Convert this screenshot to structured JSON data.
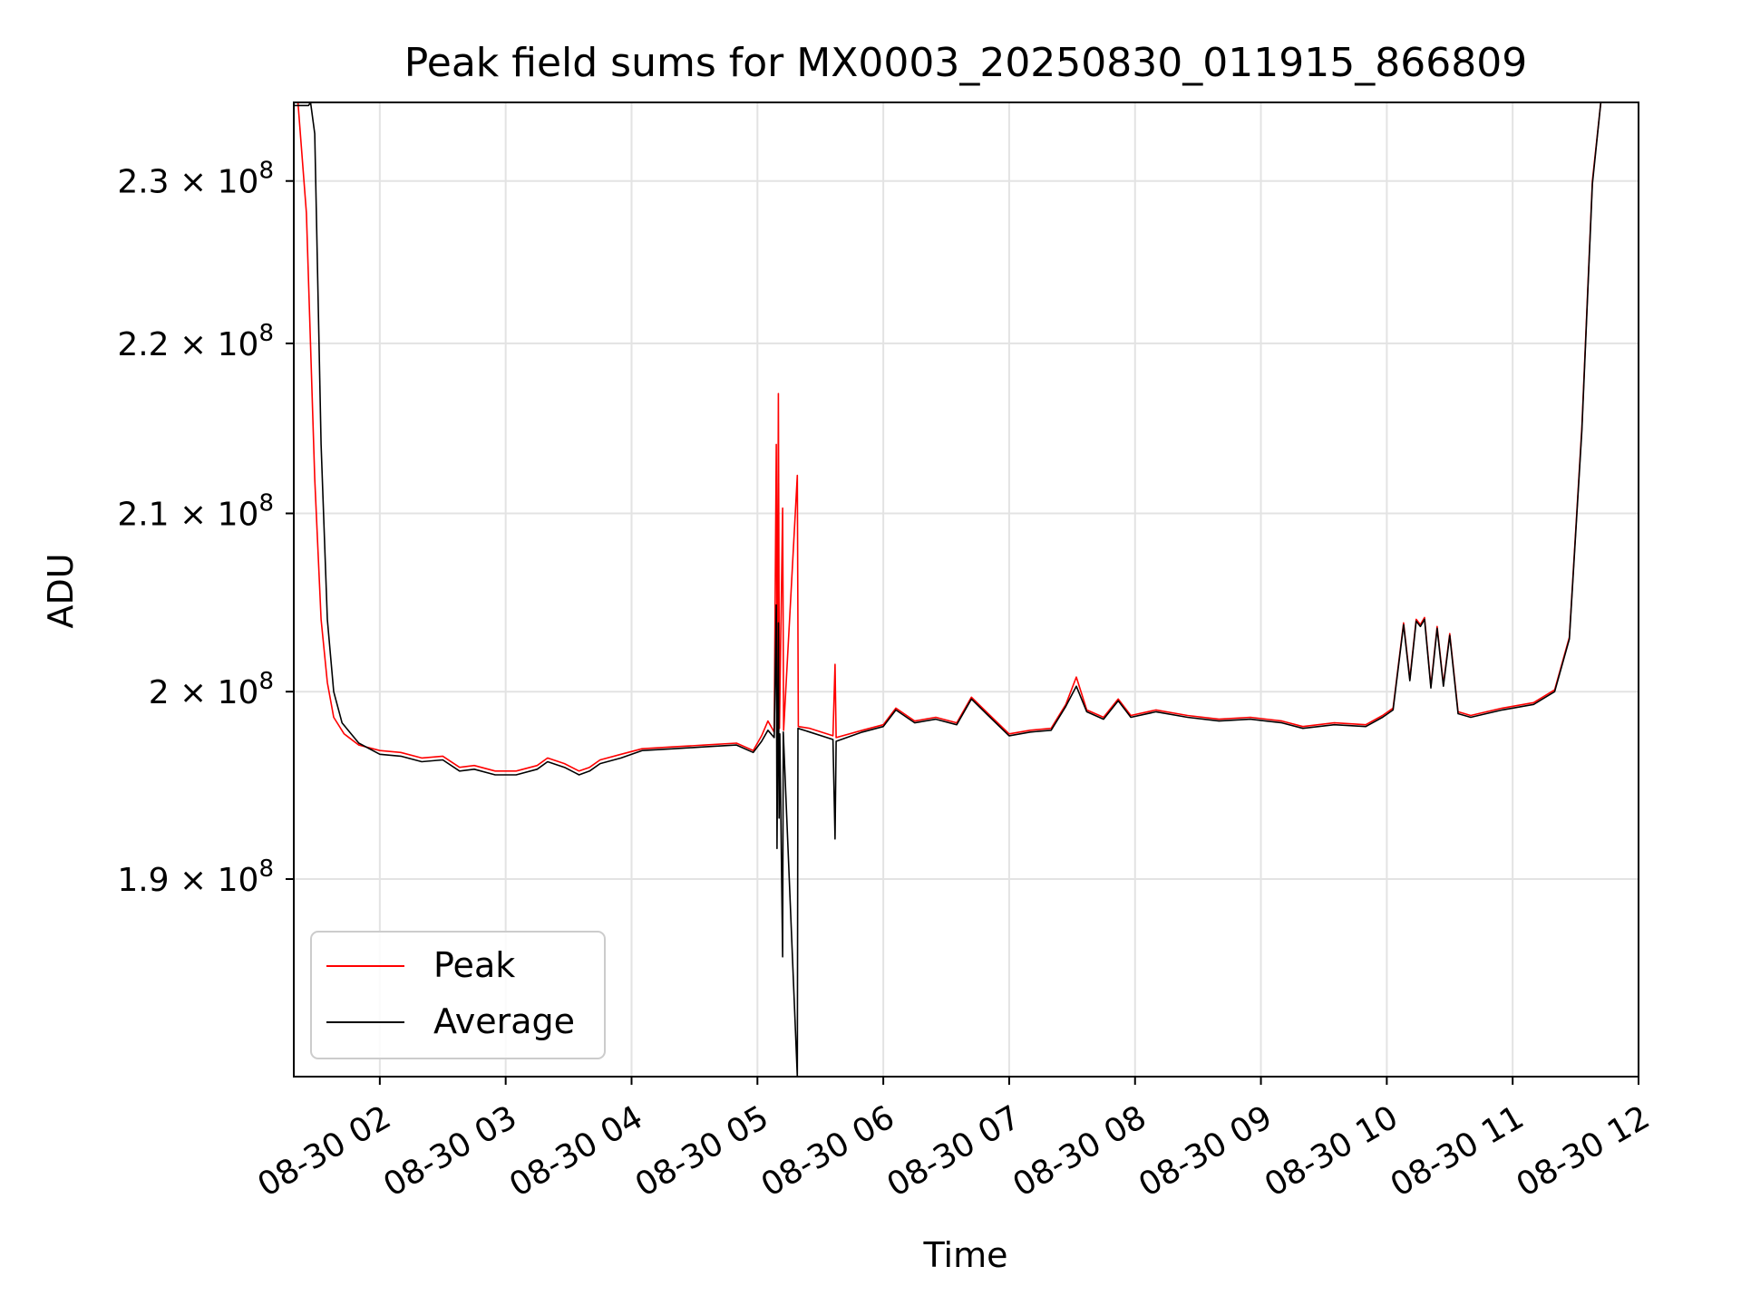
{
  "chart_data": {
    "type": "line",
    "title": "Peak field sums for MX0003_20250830_011915_866809",
    "xlabel": "Time",
    "ylabel": "ADU",
    "y_scale": "log",
    "ylim": [
      180000000,
      235000000
    ],
    "xlim": [
      "2025-08-30 01:19",
      "2025-08-30 12:00"
    ],
    "x_ticks": [
      {
        "value": "2025-08-30 02:00",
        "label": "08-30 02"
      },
      {
        "value": "2025-08-30 03:00",
        "label": "08-30 03"
      },
      {
        "value": "2025-08-30 04:00",
        "label": "08-30 04"
      },
      {
        "value": "2025-08-30 05:00",
        "label": "08-30 05"
      },
      {
        "value": "2025-08-30 06:00",
        "label": "08-30 06"
      },
      {
        "value": "2025-08-30 07:00",
        "label": "08-30 07"
      },
      {
        "value": "2025-08-30 08:00",
        "label": "08-30 08"
      },
      {
        "value": "2025-08-30 09:00",
        "label": "08-30 09"
      },
      {
        "value": "2025-08-30 10:00",
        "label": "08-30 10"
      },
      {
        "value": "2025-08-30 11:00",
        "label": "08-30 11"
      },
      {
        "value": "2025-08-30 12:00",
        "label": "08-30 12"
      }
    ],
    "y_ticks": [
      {
        "value": 190000000,
        "mantissa": "1.9",
        "base": "× 10",
        "exp": "8"
      },
      {
        "value": 200000000,
        "mantissa": "2",
        "base": "× 10",
        "exp": "8"
      },
      {
        "value": 210000000,
        "mantissa": "2.1",
        "base": "× 10",
        "exp": "8"
      },
      {
        "value": 220000000,
        "mantissa": "2.2",
        "base": "× 10",
        "exp": "8"
      },
      {
        "value": 230000000,
        "mantissa": "2.3",
        "base": "× 10",
        "exp": "8"
      }
    ],
    "grid": true,
    "legend_position": "lower-left",
    "series": [
      {
        "name": "Peak",
        "color": "#ff0000",
        "points": [
          [
            "2025-08-30 01:21",
            235000000
          ],
          [
            "2025-08-30 01:25",
            228000000
          ],
          [
            "2025-08-30 01:29",
            212000000
          ],
          [
            "2025-08-30 01:32",
            204000000
          ],
          [
            "2025-08-30 01:35",
            200500000
          ],
          [
            "2025-08-30 01:38",
            198600000
          ],
          [
            "2025-08-30 01:43",
            197700000
          ],
          [
            "2025-08-30 01:50",
            197100000
          ],
          [
            "2025-08-30 02:00",
            196800000
          ],
          [
            "2025-08-30 02:10",
            196700000
          ],
          [
            "2025-08-30 02:20",
            196400000
          ],
          [
            "2025-08-30 02:30",
            196500000
          ],
          [
            "2025-08-30 02:38",
            195900000
          ],
          [
            "2025-08-30 02:45",
            196000000
          ],
          [
            "2025-08-30 02:55",
            195700000
          ],
          [
            "2025-08-30 03:05",
            195700000
          ],
          [
            "2025-08-30 03:15",
            196000000
          ],
          [
            "2025-08-30 03:20",
            196400000
          ],
          [
            "2025-08-30 03:28",
            196100000
          ],
          [
            "2025-08-30 03:35",
            195700000
          ],
          [
            "2025-08-30 03:40",
            195900000
          ],
          [
            "2025-08-30 03:45",
            196300000
          ],
          [
            "2025-08-30 03:55",
            196600000
          ],
          [
            "2025-08-30 04:05",
            196900000
          ],
          [
            "2025-08-30 04:20",
            197000000
          ],
          [
            "2025-08-30 04:35",
            197100000
          ],
          [
            "2025-08-30 04:50",
            197200000
          ],
          [
            "2025-08-30 04:58",
            196800000
          ],
          [
            "2025-08-30 05:02",
            197600000
          ],
          [
            "2025-08-30 05:05",
            198400000
          ],
          [
            "2025-08-30 05:08",
            197800000
          ],
          [
            "2025-08-30 05:09",
            214000000
          ],
          [
            "2025-08-30 05:09:30",
            197800000
          ],
          [
            "2025-08-30 05:10",
            217000000
          ],
          [
            "2025-08-30 05:10:30",
            198000000
          ],
          [
            "2025-08-30 05:12",
            210300000
          ],
          [
            "2025-08-30 05:12:30",
            197900000
          ],
          [
            "2025-08-30 05:19",
            212200000
          ],
          [
            "2025-08-30 05:19:30",
            198100000
          ],
          [
            "2025-08-30 05:25",
            198000000
          ],
          [
            "2025-08-30 05:36",
            197600000
          ],
          [
            "2025-08-30 05:37",
            201500000
          ],
          [
            "2025-08-30 05:37:30",
            197500000
          ],
          [
            "2025-08-30 05:50",
            197900000
          ],
          [
            "2025-08-30 06:00",
            198200000
          ],
          [
            "2025-08-30 06:06",
            199100000
          ],
          [
            "2025-08-30 06:15",
            198400000
          ],
          [
            "2025-08-30 06:25",
            198600000
          ],
          [
            "2025-08-30 06:35",
            198300000
          ],
          [
            "2025-08-30 06:42",
            199700000
          ],
          [
            "2025-08-30 06:50",
            198800000
          ],
          [
            "2025-08-30 07:00",
            197700000
          ],
          [
            "2025-08-30 07:10",
            197900000
          ],
          [
            "2025-08-30 07:20",
            198000000
          ],
          [
            "2025-08-30 07:27",
            199300000
          ],
          [
            "2025-08-30 07:32",
            200800000
          ],
          [
            "2025-08-30 07:37",
            199000000
          ],
          [
            "2025-08-30 07:45",
            198600000
          ],
          [
            "2025-08-30 07:52",
            199600000
          ],
          [
            "2025-08-30 07:58",
            198700000
          ],
          [
            "2025-08-30 08:10",
            199000000
          ],
          [
            "2025-08-30 08:25",
            198700000
          ],
          [
            "2025-08-30 08:40",
            198500000
          ],
          [
            "2025-08-30 08:55",
            198600000
          ],
          [
            "2025-08-30 09:10",
            198400000
          ],
          [
            "2025-08-30 09:20",
            198100000
          ],
          [
            "2025-08-30 09:35",
            198300000
          ],
          [
            "2025-08-30 09:50",
            198200000
          ],
          [
            "2025-08-30 09:58",
            198700000
          ],
          [
            "2025-08-30 10:03",
            199100000
          ],
          [
            "2025-08-30 10:08",
            203800000
          ],
          [
            "2025-08-30 10:11",
            200700000
          ],
          [
            "2025-08-30 10:14",
            204000000
          ],
          [
            "2025-08-30 10:16",
            203700000
          ],
          [
            "2025-08-30 10:18",
            204100000
          ],
          [
            "2025-08-30 10:21",
            200300000
          ],
          [
            "2025-08-30 10:24",
            203600000
          ],
          [
            "2025-08-30 10:27",
            200400000
          ],
          [
            "2025-08-30 10:30",
            203200000
          ],
          [
            "2025-08-30 10:34",
            198900000
          ],
          [
            "2025-08-30 10:40",
            198700000
          ],
          [
            "2025-08-30 10:55",
            199100000
          ],
          [
            "2025-08-30 11:10",
            199400000
          ],
          [
            "2025-08-30 11:20",
            200100000
          ],
          [
            "2025-08-30 11:27",
            203000000
          ],
          [
            "2025-08-30 11:33",
            215000000
          ],
          [
            "2025-08-30 11:38",
            230000000
          ],
          [
            "2025-08-30 11:42",
            235000000
          ]
        ]
      },
      {
        "name": "Average",
        "color": "#000000",
        "points": [
          [
            "2025-08-30 01:19",
            234800000
          ],
          [
            "2025-08-30 01:26",
            234800000
          ],
          [
            "2025-08-30 01:27",
            235000000
          ],
          [
            "2025-08-30 01:29",
            233000000
          ],
          [
            "2025-08-30 01:32",
            214000000
          ],
          [
            "2025-08-30 01:35",
            204000000
          ],
          [
            "2025-08-30 01:38",
            200000000
          ],
          [
            "2025-08-30 01:42",
            198300000
          ],
          [
            "2025-08-30 01:50",
            197200000
          ],
          [
            "2025-08-30 02:00",
            196600000
          ],
          [
            "2025-08-30 02:10",
            196500000
          ],
          [
            "2025-08-30 02:20",
            196200000
          ],
          [
            "2025-08-30 02:30",
            196300000
          ],
          [
            "2025-08-30 02:38",
            195700000
          ],
          [
            "2025-08-30 02:45",
            195800000
          ],
          [
            "2025-08-30 02:55",
            195500000
          ],
          [
            "2025-08-30 03:05",
            195500000
          ],
          [
            "2025-08-30 03:15",
            195800000
          ],
          [
            "2025-08-30 03:20",
            196200000
          ],
          [
            "2025-08-30 03:28",
            195900000
          ],
          [
            "2025-08-30 03:35",
            195500000
          ],
          [
            "2025-08-30 03:40",
            195700000
          ],
          [
            "2025-08-30 03:45",
            196100000
          ],
          [
            "2025-08-30 03:55",
            196400000
          ],
          [
            "2025-08-30 04:05",
            196800000
          ],
          [
            "2025-08-30 04:20",
            196900000
          ],
          [
            "2025-08-30 04:35",
            197000000
          ],
          [
            "2025-08-30 04:50",
            197100000
          ],
          [
            "2025-08-30 04:58",
            196700000
          ],
          [
            "2025-08-30 05:02",
            197300000
          ],
          [
            "2025-08-30 05:05",
            197900000
          ],
          [
            "2025-08-30 05:08",
            197500000
          ],
          [
            "2025-08-30 05:09",
            204800000
          ],
          [
            "2025-08-30 05:09:20",
            191600000
          ],
          [
            "2025-08-30 05:09:40",
            197600000
          ],
          [
            "2025-08-30 05:10",
            203800000
          ],
          [
            "2025-08-30 05:10:20",
            193200000
          ],
          [
            "2025-08-30 05:10:40",
            197700000
          ],
          [
            "2025-08-30 05:12",
            186000000
          ],
          [
            "2025-08-30 05:12:20",
            197800000
          ],
          [
            "2025-08-30 05:19",
            180000000
          ],
          [
            "2025-08-30 05:19:20",
            198000000
          ],
          [
            "2025-08-30 05:25",
            197800000
          ],
          [
            "2025-08-30 05:36",
            197400000
          ],
          [
            "2025-08-30 05:37",
            192100000
          ],
          [
            "2025-08-30 05:37:30",
            197300000
          ],
          [
            "2025-08-30 05:50",
            197800000
          ],
          [
            "2025-08-30 06:00",
            198100000
          ],
          [
            "2025-08-30 06:06",
            199000000
          ],
          [
            "2025-08-30 06:15",
            198300000
          ],
          [
            "2025-08-30 06:25",
            198500000
          ],
          [
            "2025-08-30 06:35",
            198200000
          ],
          [
            "2025-08-30 06:42",
            199600000
          ],
          [
            "2025-08-30 06:50",
            198700000
          ],
          [
            "2025-08-30 07:00",
            197600000
          ],
          [
            "2025-08-30 07:10",
            197800000
          ],
          [
            "2025-08-30 07:20",
            197900000
          ],
          [
            "2025-08-30 07:27",
            199200000
          ],
          [
            "2025-08-30 07:32",
            200300000
          ],
          [
            "2025-08-30 07:37",
            198900000
          ],
          [
            "2025-08-30 07:45",
            198500000
          ],
          [
            "2025-08-30 07:52",
            199500000
          ],
          [
            "2025-08-30 07:58",
            198600000
          ],
          [
            "2025-08-30 08:10",
            198900000
          ],
          [
            "2025-08-30 08:25",
            198600000
          ],
          [
            "2025-08-30 08:40",
            198400000
          ],
          [
            "2025-08-30 08:55",
            198500000
          ],
          [
            "2025-08-30 09:10",
            198300000
          ],
          [
            "2025-08-30 09:20",
            198000000
          ],
          [
            "2025-08-30 09:35",
            198200000
          ],
          [
            "2025-08-30 09:50",
            198100000
          ],
          [
            "2025-08-30 09:58",
            198600000
          ],
          [
            "2025-08-30 10:03",
            199000000
          ],
          [
            "2025-08-30 10:08",
            203700000
          ],
          [
            "2025-08-30 10:11",
            200600000
          ],
          [
            "2025-08-30 10:14",
            203900000
          ],
          [
            "2025-08-30 10:16",
            203600000
          ],
          [
            "2025-08-30 10:18",
            204000000
          ],
          [
            "2025-08-30 10:21",
            200200000
          ],
          [
            "2025-08-30 10:24",
            203500000
          ],
          [
            "2025-08-30 10:27",
            200300000
          ],
          [
            "2025-08-30 10:30",
            203100000
          ],
          [
            "2025-08-30 10:34",
            198800000
          ],
          [
            "2025-08-30 10:40",
            198600000
          ],
          [
            "2025-08-30 10:55",
            199000000
          ],
          [
            "2025-08-30 11:10",
            199300000
          ],
          [
            "2025-08-30 11:20",
            200000000
          ],
          [
            "2025-08-30 11:27",
            202900000
          ],
          [
            "2025-08-30 11:33",
            214800000
          ],
          [
            "2025-08-30 11:38",
            229800000
          ],
          [
            "2025-08-30 11:42",
            235000000
          ]
        ]
      }
    ]
  }
}
